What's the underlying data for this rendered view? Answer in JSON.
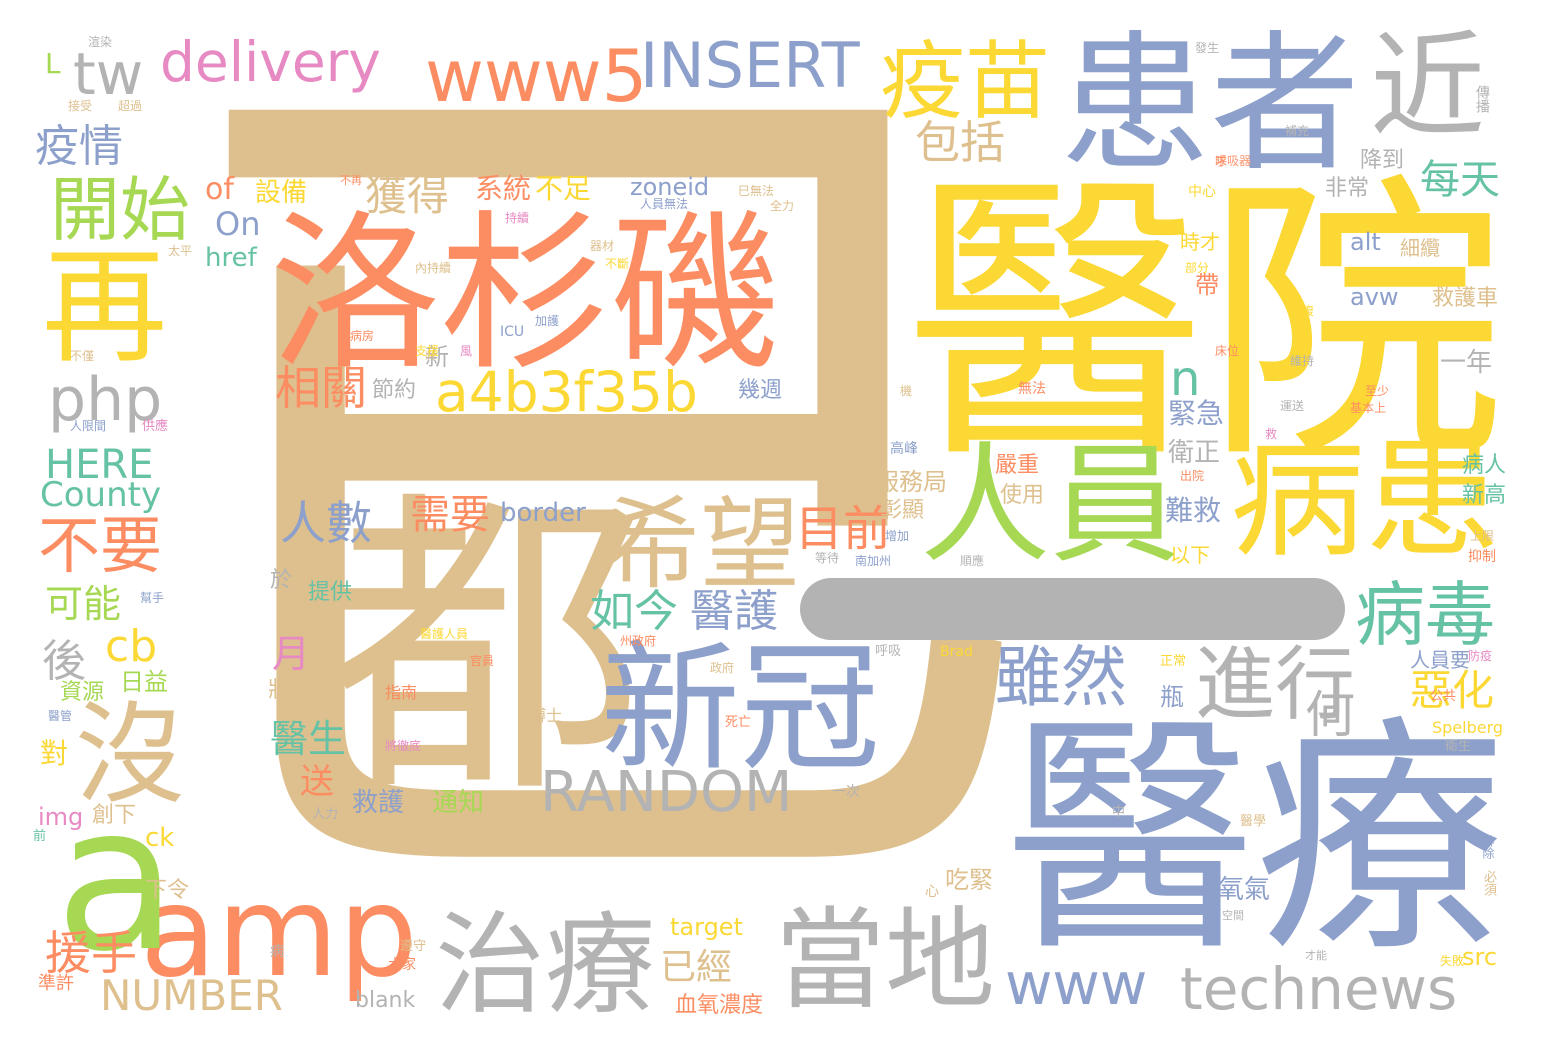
{
  "words": [
    {
      "text": "已",
      "color": "tan"
    },
    {
      "text": "醫院",
      "color": "yellow"
    },
    {
      "text": "醫療",
      "color": "blue"
    },
    {
      "text": "患者",
      "color": "blue"
    },
    {
      "text": "洛杉磯",
      "color": "orange"
    },
    {
      "text": "都",
      "color": "tan"
    },
    {
      "text": "一",
      "color": "gray"
    },
    {
      "text": "新冠",
      "color": "blue"
    },
    {
      "text": "人員",
      "color": "lime"
    },
    {
      "text": "病患",
      "color": "yellow"
    },
    {
      "text": "希望",
      "color": "tan"
    },
    {
      "text": "當地",
      "color": "gray"
    },
    {
      "text": "治療",
      "color": "gray"
    },
    {
      "text": "amp",
      "color": "orange"
    },
    {
      "text": "a",
      "color": "lime"
    },
    {
      "text": "再",
      "color": "yellow"
    },
    {
      "text": "沒",
      "color": "tan"
    },
    {
      "text": "近",
      "color": "gray"
    },
    {
      "text": "疫苗",
      "color": "yellow"
    },
    {
      "text": "www5",
      "color": "orange"
    },
    {
      "text": "INSERT",
      "color": "blue"
    },
    {
      "text": "delivery",
      "color": "pink"
    },
    {
      "text": "tw",
      "color": "gray"
    },
    {
      "text": "L",
      "color": "lime"
    },
    {
      "text": "疫情",
      "color": "blue"
    },
    {
      "text": "開始",
      "color": "lime"
    },
    {
      "text": "php",
      "color": "gray"
    },
    {
      "text": "a4b3f35b",
      "color": "yellow"
    },
    {
      "text": "相關",
      "color": "orange"
    },
    {
      "text": "RANDOM",
      "color": "gray"
    },
    {
      "text": "technews",
      "color": "gray"
    },
    {
      "text": "www",
      "color": "blue"
    },
    {
      "text": "進行",
      "color": "gray"
    },
    {
      "text": "雖然",
      "color": "blue"
    },
    {
      "text": "病毒",
      "color": "green"
    },
    {
      "text": "包括",
      "color": "tan"
    },
    {
      "text": "每天",
      "color": "green"
    },
    {
      "text": "不要",
      "color": "orange"
    },
    {
      "text": "NUMBER",
      "color": "tan"
    },
    {
      "text": "HERE",
      "color": "green"
    },
    {
      "text": "County",
      "color": "green"
    },
    {
      "text": "cb",
      "color": "yellow"
    },
    {
      "text": "可能",
      "color": "lime"
    },
    {
      "text": "後",
      "color": "gray"
    },
    {
      "text": "援手",
      "color": "orange"
    },
    {
      "text": "如今",
      "color": "green"
    },
    {
      "text": "醫護",
      "color": "blue"
    },
    {
      "text": "目前",
      "color": "orange"
    },
    {
      "text": "人數",
      "color": "blue"
    },
    {
      "text": "需要",
      "color": "orange"
    },
    {
      "text": "border",
      "color": "blue"
    },
    {
      "text": "惡化",
      "color": "yellow"
    },
    {
      "text": "獲得",
      "color": "tan"
    },
    {
      "text": "系統",
      "color": "orange"
    },
    {
      "text": "不足",
      "color": "yellow"
    },
    {
      "text": "zoneid",
      "color": "blue"
    },
    {
      "text": "設備",
      "color": "yellow"
    },
    {
      "text": "of",
      "color": "orange"
    },
    {
      "text": "On",
      "color": "blue"
    },
    {
      "text": "href",
      "color": "green"
    },
    {
      "text": "n",
      "color": "green"
    },
    {
      "text": "醫生",
      "color": "green"
    },
    {
      "text": "月",
      "color": "pink"
    },
    {
      "text": "送",
      "color": "orange"
    },
    {
      "text": "救護",
      "color": "blue"
    },
    {
      "text": "通知",
      "color": "lime"
    },
    {
      "text": "已經",
      "color": "tan"
    },
    {
      "text": "target",
      "color": "yellow"
    },
    {
      "text": "blank",
      "color": "gray"
    },
    {
      "text": "血氧濃度",
      "color": "orange"
    },
    {
      "text": "src",
      "color": "yellow"
    },
    {
      "text": "img",
      "color": "pink"
    },
    {
      "text": "創下",
      "color": "tan"
    },
    {
      "text": "ck",
      "color": "yellow"
    },
    {
      "text": "下令",
      "color": "tan"
    },
    {
      "text": "對",
      "color": "yellow"
    },
    {
      "text": "日益",
      "color": "lime"
    },
    {
      "text": "資源",
      "color": "lime"
    },
    {
      "text": "服務局",
      "color": "tan"
    },
    {
      "text": "彰顯",
      "color": "tan"
    },
    {
      "text": "嚴重",
      "color": "orange"
    },
    {
      "text": "使用",
      "color": "tan"
    },
    {
      "text": "降到",
      "color": "gray"
    },
    {
      "text": "非常",
      "color": "gray"
    },
    {
      "text": "救護車",
      "color": "tan"
    },
    {
      "text": "一年",
      "color": "gray"
    },
    {
      "text": "alt",
      "color": "blue"
    },
    {
      "text": "avw",
      "color": "blue"
    },
    {
      "text": "緊急",
      "color": "blue"
    },
    {
      "text": "衛正",
      "color": "gray"
    },
    {
      "text": "難救",
      "color": "blue"
    },
    {
      "text": "病人",
      "color": "green"
    },
    {
      "text": "新高",
      "color": "green"
    },
    {
      "text": "人員要",
      "color": "blue"
    },
    {
      "text": "氧氣",
      "color": "blue"
    },
    {
      "text": "吃緊",
      "color": "tan"
    },
    {
      "text": "節約",
      "color": "gray"
    },
    {
      "text": "新",
      "color": "gray"
    },
    {
      "text": "幾週",
      "color": "blue"
    },
    {
      "text": "提供",
      "color": "green"
    },
    {
      "text": "狀況",
      "color": "tan"
    },
    {
      "text": "於",
      "color": "gray"
    },
    {
      "text": "Spelberg",
      "color": "yellow"
    },
    {
      "text": "Brad",
      "color": "yellow"
    },
    {
      "text": "ICU",
      "color": "blue"
    },
    {
      "text": "指南",
      "color": "orange"
    },
    {
      "text": "博士",
      "color": "tan"
    },
    {
      "text": "以下",
      "color": "yellow"
    },
    {
      "text": "帶",
      "color": "orange"
    },
    {
      "text": "瓶",
      "color": "blue"
    },
    {
      "text": "何",
      "color": "gray"
    },
    {
      "text": "時才",
      "color": "yellow"
    },
    {
      "text": "細纜",
      "color": "tan"
    },
    {
      "text": "中心",
      "color": "yellow"
    },
    {
      "text": "高峰",
      "color": "blue"
    },
    {
      "text": "無法",
      "color": "orange"
    },
    {
      "text": "呼吸",
      "color": "gray"
    },
    {
      "text": "死亡",
      "color": "orange"
    },
    {
      "text": "醫學",
      "color": "tan"
    },
    {
      "text": "公共",
      "color": "orange"
    },
    {
      "text": "衛生",
      "color": "gray"
    },
    {
      "text": "傳播",
      "color": "gray"
    },
    {
      "text": "抑制",
      "color": "orange"
    },
    {
      "text": "一次",
      "color": "gray"
    },
    {
      "text": "中",
      "color": "gray"
    },
    {
      "text": "心",
      "color": "tan"
    },
    {
      "text": "必須",
      "color": "tan"
    },
    {
      "text": "大家",
      "color": "orange"
    },
    {
      "text": "遵守",
      "color": "tan"
    },
    {
      "text": "準許",
      "color": "orange"
    },
    {
      "text": "人力",
      "color": "gray"
    },
    {
      "text": "病",
      "color": "gray"
    },
    {
      "text": "前",
      "color": "green"
    },
    {
      "text": "醫管",
      "color": "blue"
    },
    {
      "text": "幫手",
      "color": "blue"
    },
    {
      "text": "供應",
      "color": "pink"
    },
    {
      "text": "人限間",
      "color": "blue"
    },
    {
      "text": "不僅",
      "color": "tan"
    },
    {
      "text": "太平",
      "color": "tan"
    },
    {
      "text": "至少",
      "color": "orange"
    },
    {
      "text": "基本上",
      "color": "orange"
    },
    {
      "text": "出院",
      "color": "orange"
    },
    {
      "text": "增加",
      "color": "blue"
    },
    {
      "text": "南加州",
      "color": "blue"
    },
    {
      "text": "等待",
      "color": "gray"
    },
    {
      "text": "順應",
      "color": "gray"
    },
    {
      "text": "正常",
      "color": "yellow"
    },
    {
      "text": "防疫",
      "color": "pink"
    },
    {
      "text": "將徹底",
      "color": "pink"
    },
    {
      "text": "排除",
      "color": "blue"
    },
    {
      "text": "才能",
      "color": "gray"
    },
    {
      "text": "空間",
      "color": "gray"
    },
    {
      "text": "失敗",
      "color": "yellow"
    },
    {
      "text": "器材",
      "color": "tan"
    },
    {
      "text": "不斷",
      "color": "yellow"
    },
    {
      "text": "救",
      "color": "pink"
    },
    {
      "text": "求",
      "color": "orange"
    },
    {
      "text": "維持",
      "color": "gray"
    },
    {
      "text": "運送",
      "color": "gray"
    },
    {
      "text": "巳無法",
      "color": "tan"
    },
    {
      "text": "補充",
      "color": "gray"
    },
    {
      "text": "發生",
      "color": "gray"
    },
    {
      "text": "渲染",
      "color": "gray"
    },
    {
      "text": "醫護人員",
      "color": "yellow"
    },
    {
      "text": "超過",
      "color": "tan"
    },
    {
      "text": "接受",
      "color": "tan"
    },
    {
      "text": "部分",
      "color": "yellow"
    },
    {
      "text": "恢復",
      "color": "yellow"
    },
    {
      "text": "上限",
      "color": "tan"
    },
    {
      "text": "加護",
      "color": "blue"
    },
    {
      "text": "病房",
      "color": "orange"
    },
    {
      "text": "床位",
      "color": "orange"
    },
    {
      "text": "呼吸器",
      "color": "orange"
    },
    {
      "text": "州政府",
      "color": "orange"
    },
    {
      "text": "官員",
      "color": "orange"
    },
    {
      "text": "政府",
      "color": "tan"
    },
    {
      "text": "將",
      "color": "tan"
    },
    {
      "text": "全力",
      "color": "tan"
    },
    {
      "text": "支援",
      "color": "yellow"
    },
    {
      "text": "人員無法",
      "color": "blue"
    },
    {
      "text": "持續",
      "color": "pink"
    },
    {
      "text": "內持續",
      "color": "tan"
    },
    {
      "text": "風",
      "color": "pink"
    },
    {
      "text": "確診",
      "color": "tan"
    },
    {
      "text": "不再",
      "color": "orange"
    },
    {
      "text": "機",
      "color": "tan"
    }
  ]
}
